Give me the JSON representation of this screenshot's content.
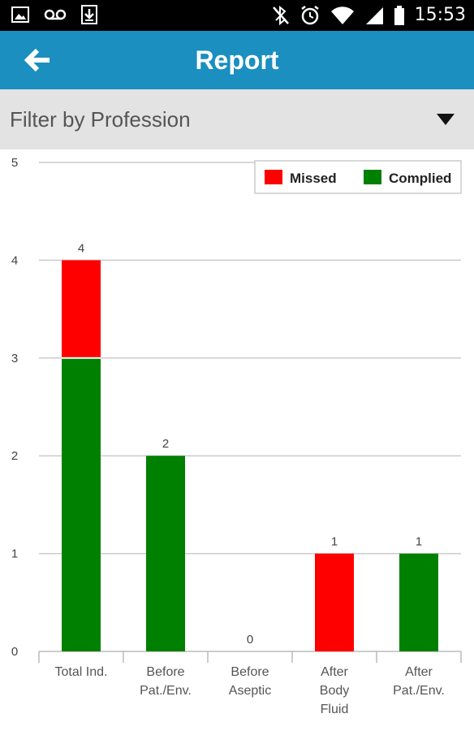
{
  "status_bar": {
    "time": "15:53",
    "left_icons": [
      "image-icon",
      "voicemail-icon",
      "download-icon"
    ],
    "right_icons": [
      "bluetooth-off-icon",
      "alarm-icon",
      "wifi-icon",
      "signal-icon",
      "battery-icon"
    ]
  },
  "app_bar": {
    "title": "Report",
    "back_icon": "arrow-left-icon",
    "color": "#1a8fc0"
  },
  "filter": {
    "label": "Filter by Profession",
    "icon": "caret-down-icon"
  },
  "chart_data": {
    "type": "bar",
    "stacked": true,
    "categories": [
      "Total Ind.",
      "Before Pat./Env.",
      "Before Aseptic",
      "After Body Fluid",
      "After Pat./Env."
    ],
    "category_lines": [
      [
        "Total Ind."
      ],
      [
        "Before",
        "Pat./Env."
      ],
      [
        "Before",
        "Aseptic"
      ],
      [
        "After",
        "Body",
        "Fluid"
      ],
      [
        "After",
        "Pat./Env."
      ]
    ],
    "series": [
      {
        "name": "Complied",
        "color": "#008000",
        "values": [
          3,
          2,
          0,
          0,
          1
        ]
      },
      {
        "name": "Missed",
        "color": "#ff0000",
        "values": [
          1,
          0,
          0,
          1,
          0
        ]
      }
    ],
    "totals": [
      4,
      2,
      0,
      1,
      1
    ],
    "ylim": [
      0,
      5
    ],
    "yticks": [
      "0",
      "1",
      "2",
      "3",
      "4",
      "5"
    ],
    "grid": true,
    "legend": {
      "position": "top-right",
      "entries": [
        {
          "label": "Missed",
          "color": "#ff0000"
        },
        {
          "label": "Complied",
          "color": "#008000"
        }
      ]
    }
  }
}
